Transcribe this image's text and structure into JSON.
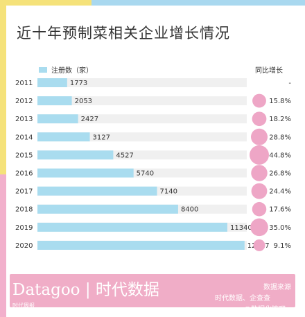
{
  "title": "近十年预制菜相关企业增长情况",
  "legend_label": "注册数（家）",
  "growth_header": "同比增长",
  "footer": {
    "brand": "Datagoo | 时代数据",
    "source_title": "数据来源",
    "source_text": "时代数据、企查查",
    "watermark_left": "时代周报",
    "watermark_right": "@数据化管理"
  },
  "colors": {
    "bar": "#a9dcef",
    "track": "#f0f0f0",
    "bubble": "#eea6c6",
    "footer": "#f0adc7"
  },
  "chart_data": {
    "type": "bar",
    "orientation": "horizontal",
    "categories": [
      "2011",
      "2012",
      "2013",
      "2014",
      "2015",
      "2016",
      "2017",
      "2018",
      "2019",
      "2020"
    ],
    "series": [
      {
        "name": "注册数（家）",
        "values": [
          1773,
          2053,
          2427,
          3127,
          4527,
          5740,
          7140,
          8400,
          11340,
          12367
        ]
      }
    ],
    "growth": {
      "name": "同比增长",
      "labels": [
        "-",
        "15.8%",
        "18.2%",
        "28.8%",
        "44.8%",
        "26.8%",
        "24.4%",
        "17.6%",
        "35.0%",
        "9.1%"
      ],
      "values": [
        null,
        15.8,
        18.2,
        28.8,
        44.8,
        26.8,
        24.4,
        17.6,
        35.0,
        9.1
      ]
    },
    "xlim": [
      0,
      12500
    ]
  }
}
